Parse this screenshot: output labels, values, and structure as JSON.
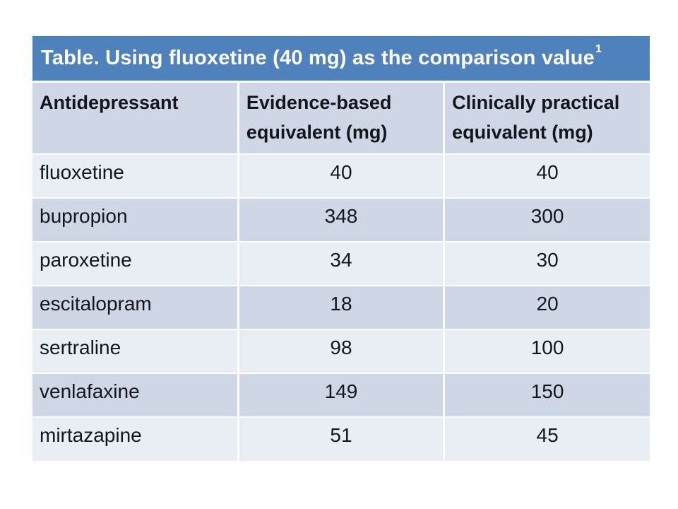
{
  "colors": {
    "background": "#ffffff",
    "title_bg": "#4f81bc",
    "title_text": "#ffffff",
    "band_dark": "#cfd6e6",
    "band_light": "#e9edf4",
    "body_text": "#15151e"
  },
  "title": {
    "text": "Table. Using fluoxetine (40 mg) as the comparison value",
    "superscript": "1"
  },
  "table": {
    "columns": [
      {
        "label": "Antidepressant"
      },
      {
        "label": "Evidence-based equivalent (mg)"
      },
      {
        "label": "Clinically practical equivalent (mg)"
      }
    ],
    "rows": [
      {
        "name": "fluoxetine",
        "evidence": "40",
        "practical": "40"
      },
      {
        "name": "bupropion",
        "evidence": "348",
        "practical": "300"
      },
      {
        "name": "paroxetine",
        "evidence": "34",
        "practical": "30"
      },
      {
        "name": "escitalopram",
        "evidence": "18",
        "practical": "20"
      },
      {
        "name": "sertraline",
        "evidence": "98",
        "practical": "100"
      },
      {
        "name": "venlafaxine",
        "evidence": "149",
        "practical": "150"
      },
      {
        "name": "mirtazapine",
        "evidence": "51",
        "practical": "45"
      }
    ]
  }
}
